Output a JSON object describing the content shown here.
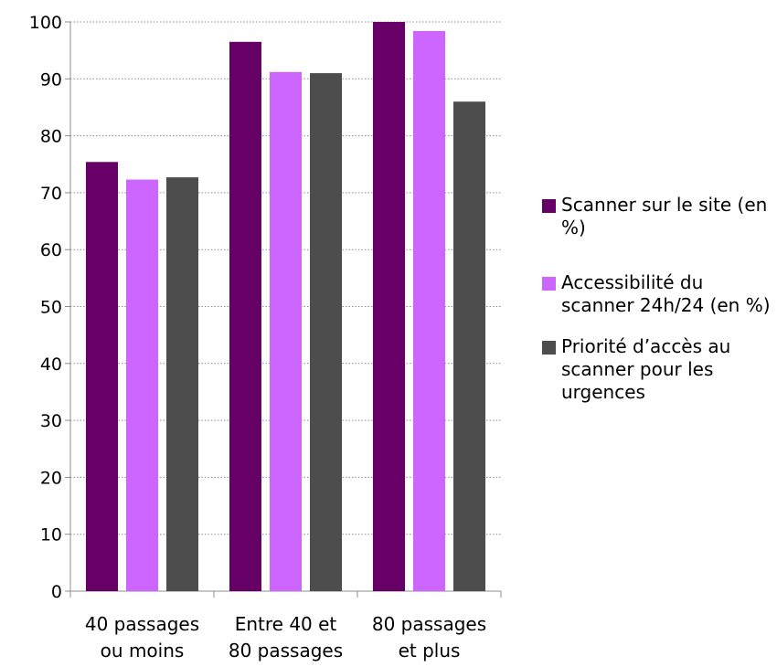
{
  "chart_data": {
    "type": "bar",
    "categories": [
      [
        "40 passages",
        "ou moins"
      ],
      [
        "Entre 40 et",
        "80 passages"
      ],
      [
        "80 passages",
        "et plus"
      ]
    ],
    "series": [
      {
        "name": "Scanner sur le site (en %)",
        "color": "#660066",
        "values": [
          75.4,
          96.5,
          100
        ]
      },
      {
        "name": "Accessibilité du scanner 24h/24 (en %)",
        "color": "#cc66ff",
        "values": [
          72.3,
          91.2,
          98.4
        ]
      },
      {
        "name": "Priorité d’accès au scanner pour les urgences",
        "color": "#4d4d4d",
        "values": [
          72.7,
          91.0,
          86.0
        ]
      }
    ],
    "title": "",
    "xlabel": "",
    "ylabel": "",
    "ylim": [
      0,
      100
    ],
    "yticks": [
      "0",
      "10",
      "20",
      "30",
      "40",
      "50",
      "60",
      "70",
      "80",
      "90",
      "100"
    ],
    "grid": true,
    "legend_position": "right"
  }
}
